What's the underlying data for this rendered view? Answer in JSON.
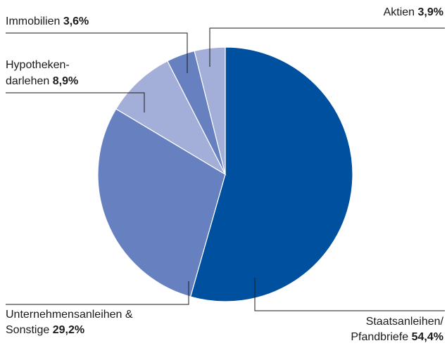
{
  "chart_data": {
    "type": "pie",
    "categories": [
      "Staatsanleihen/\nPfandbriefe",
      "Unternehmensanleihen &\nSonstige",
      "Hypotheken-\ndarlehen",
      "Immobilien",
      "Aktien"
    ],
    "values": [
      54.4,
      29.2,
      8.9,
      3.6,
      3.9
    ],
    "value_labels": [
      "54,4%",
      "29,2%",
      "8,9%",
      "3,6%",
      "3,9%"
    ],
    "colors": [
      "#0050a0",
      "#6680c0",
      "#a3afd8",
      "#6680c0",
      "#a3afd8"
    ]
  }
}
